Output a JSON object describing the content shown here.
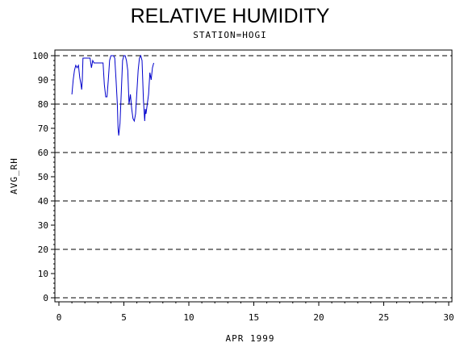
{
  "chart_data": {
    "type": "line",
    "title": "RELATIVE HUMIDITY",
    "subtitle": "STATION=HOGI",
    "xlabel": "APR 1999",
    "ylabel": "AVG_RH",
    "xlim": [
      0,
      30
    ],
    "ylim": [
      0,
      100
    ],
    "x_ticks": [
      "0",
      "5",
      "10",
      "15",
      "20",
      "25",
      "30"
    ],
    "y_ticks": [
      "0",
      "10",
      "20",
      "30",
      "40",
      "50",
      "60",
      "70",
      "80",
      "90",
      "100"
    ],
    "reference_lines": [
      0,
      20,
      40,
      60,
      80,
      100
    ],
    "line_color": "#0000cc",
    "series": [
      {
        "values": [
          [
            1.0,
            84
          ],
          [
            1.1,
            90
          ],
          [
            1.2,
            94
          ],
          [
            1.3,
            96
          ],
          [
            1.4,
            95
          ],
          [
            1.5,
            96
          ],
          [
            1.6,
            91
          ],
          [
            1.7,
            88
          ],
          [
            1.75,
            86
          ],
          [
            1.8,
            90
          ],
          [
            1.85,
            99
          ],
          [
            2.0,
            99
          ],
          [
            2.4,
            99
          ],
          [
            2.5,
            95
          ],
          [
            2.6,
            98
          ],
          [
            2.7,
            97
          ],
          [
            3.0,
            97
          ],
          [
            3.4,
            97
          ],
          [
            3.5,
            88
          ],
          [
            3.6,
            83
          ],
          [
            3.7,
            83
          ],
          [
            3.8,
            90
          ],
          [
            3.9,
            98
          ],
          [
            4.0,
            100
          ],
          [
            4.2,
            100
          ],
          [
            4.3,
            99
          ],
          [
            4.4,
            90
          ],
          [
            4.5,
            80
          ],
          [
            4.55,
            70
          ],
          [
            4.6,
            67
          ],
          [
            4.7,
            72
          ],
          [
            4.8,
            85
          ],
          [
            4.9,
            98
          ],
          [
            5.0,
            100
          ],
          [
            5.1,
            100
          ],
          [
            5.2,
            98
          ],
          [
            5.3,
            94
          ],
          [
            5.4,
            80
          ],
          [
            5.5,
            84
          ],
          [
            5.6,
            78
          ],
          [
            5.7,
            74
          ],
          [
            5.8,
            73
          ],
          [
            5.9,
            76
          ],
          [
            6.0,
            85
          ],
          [
            6.1,
            94
          ],
          [
            6.2,
            99
          ],
          [
            6.3,
            100
          ],
          [
            6.4,
            98
          ],
          [
            6.5,
            82
          ],
          [
            6.6,
            73
          ],
          [
            6.65,
            78
          ],
          [
            6.7,
            76
          ],
          [
            6.8,
            80
          ],
          [
            6.9,
            84
          ],
          [
            7.0,
            93
          ],
          [
            7.1,
            90
          ],
          [
            7.2,
            95
          ],
          [
            7.3,
            97
          ]
        ]
      }
    ]
  }
}
